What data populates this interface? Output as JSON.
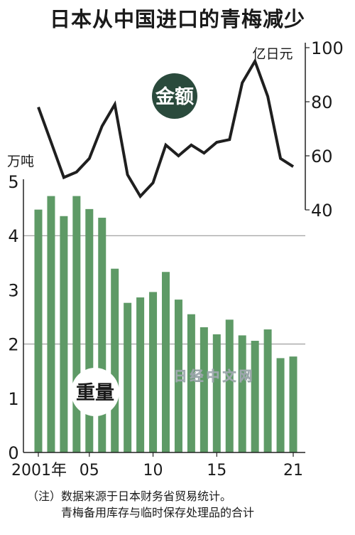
{
  "title": "日本从中国进口的青梅减少",
  "chart_data": {
    "type": "bar+line",
    "x": [
      2001,
      2002,
      2003,
      2004,
      2005,
      2006,
      2007,
      2008,
      2009,
      2010,
      2011,
      2012,
      2013,
      2014,
      2015,
      2016,
      2017,
      2018,
      2019,
      2020,
      2021
    ],
    "x_tick_labels": [
      {
        "x": 2001,
        "label": "2001年"
      },
      {
        "x": 2005,
        "label": "05"
      },
      {
        "x": 2010,
        "label": "10"
      },
      {
        "x": 2015,
        "label": "15"
      },
      {
        "x": 2021,
        "label": "21"
      }
    ],
    "series": [
      {
        "name": "重量",
        "type": "bar",
        "unit": "万吨",
        "axis": "left",
        "color": "#5e9a66",
        "values": [
          4.48,
          4.73,
          4.36,
          4.73,
          4.49,
          4.33,
          3.39,
          2.76,
          2.86,
          2.96,
          3.33,
          2.82,
          2.55,
          2.31,
          2.18,
          2.45,
          2.16,
          2.06,
          2.27,
          1.74,
          1.77
        ]
      },
      {
        "name": "金额",
        "type": "line",
        "unit": "亿日元",
        "axis": "right",
        "color": "#1f1f1f",
        "values": [
          78,
          65,
          52,
          54,
          59,
          71,
          79,
          53,
          45,
          50,
          64,
          60,
          64,
          61,
          65,
          66,
          87,
          95,
          82,
          59,
          56
        ]
      }
    ],
    "left_axis": {
      "label": "万吨",
      "ticks": [
        0,
        1,
        2,
        3,
        4,
        5
      ],
      "ylim": [
        0,
        5
      ]
    },
    "right_axis": {
      "label": "亿日元",
      "ticks": [
        40,
        60,
        80,
        100
      ],
      "ylim": [
        40,
        100
      ]
    },
    "gridlines": [
      2,
      4
    ],
    "badge_colors": {
      "金额": "#2a4a3c",
      "重量": "#ffffff"
    }
  },
  "watermark": "日经中文网",
  "note": {
    "line1": "（注）数据来源于日本财务省贸易统计。",
    "line2": "青梅备用库存与临时保存处理品的合计"
  }
}
